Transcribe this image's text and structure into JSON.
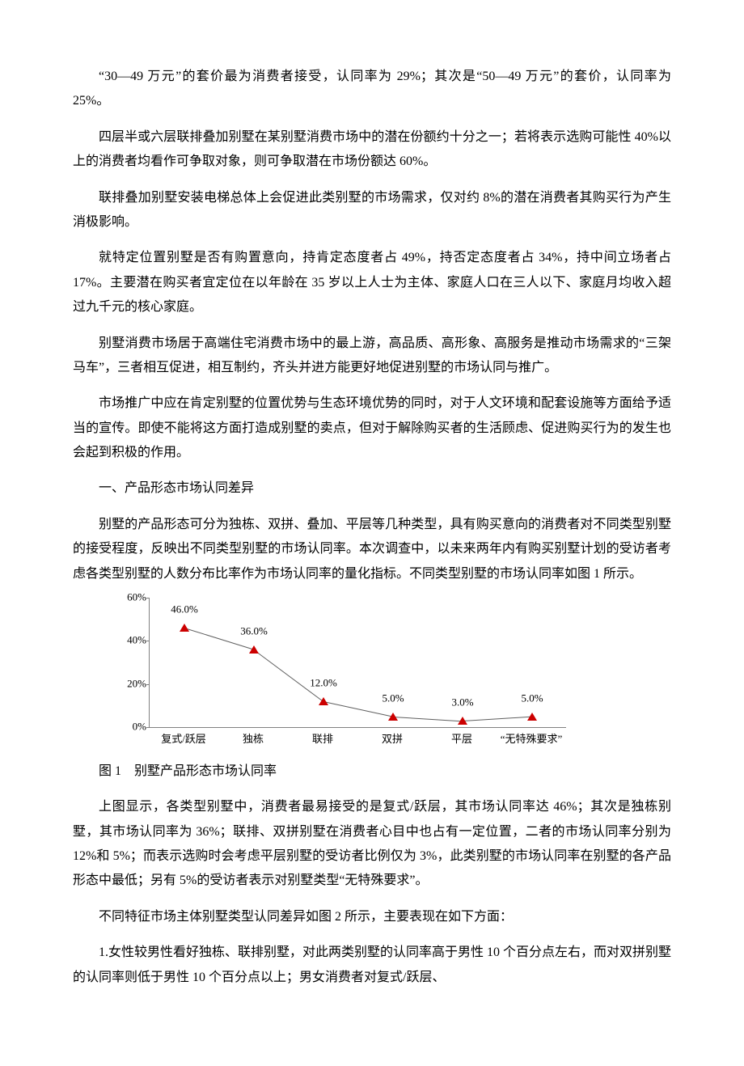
{
  "paragraphs": {
    "p1": "“30—49 万元”的套价最为消费者接受，认同率为 29%；其次是“50—49 万元”的套价，认同率为 25%。",
    "p2": "四层半或六层联排叠加别墅在某别墅消费市场中的潜在份额约十分之一；若将表示选购可能性 40%以上的消费者均看作可争取对象，则可争取潜在市场份额达 60%。",
    "p3": "联排叠加别墅安装电梯总体上会促进此类别墅的市场需求，仅对约 8%的潜在消费者其购买行为产生消极影响。",
    "p4": "就特定位置别墅是否有购置意向，持肯定态度者占 49%，持否定态度者占 34%，持中间立场者占 17%。主要潜在购买者宜定位在以年龄在 35 岁以上人士为主体、家庭人口在三人以下、家庭月均收入超过九千元的核心家庭。",
    "p5": "别墅消费市场居于高端住宅消费市场中的最上游，高品质、高形象、高服务是推动市场需求的“三架马车”，三者相互促进，相互制约，齐头并进方能更好地促进别墅的市场认同与推广。",
    "p6": "市场推广中应在肯定别墅的位置优势与生态环境优势的同时，对于人文环境和配套设施等方面给予适当的宣传。即使不能将这方面打造成别墅的卖点，但对于解除购买者的生活顾虑、促进购买行为的发生也会起到积极的作用。",
    "h1": "一、产品形态市场认同差异",
    "p7": "别墅的产品形态可分为独栋、双拼、叠加、平层等几种类型，具有购买意向的消费者对不同类型别墅的接受程度，反映出不同类型别墅的市场认同率。本次调查中，以未来两年内有购买别墅计划的受访者考虑各类型别墅的人数分布比率作为市场认同率的量化指标。不同类型别墅的市场认同率如图 1 所示。",
    "figcap": "图 1　别墅产品形态市场认同率",
    "p8": "上图显示，各类型别墅中，消费者最易接受的是复式/跃层，其市场认同率达 46%；其次是独栋别墅，其市场认同率为 36%；联排、双拼别墅在消费者心目中也占有一定位置，二者的市场认同率分别为 12%和 5%；而表示选购时会考虑平层别墅的受访者比例仅为 3%，此类别墅的市场认同率在别墅的各产品形态中最低；另有 5%的受访者表示对别墅类型“无特殊要求”。",
    "p9": "不同特征市场主体别墅类型认同差异如图 2 所示，主要表现在如下方面：",
    "p10": "1.女性较男性看好独栋、联排别墅，对此两类别墅的认同率高于男性 10 个百分点左右，而对双拼别墅的认同率则低于男性 10 个百分点以上；男女消费者对复式/跃层、"
  },
  "chart": {
    "type": "line-marker",
    "ylim": [
      0,
      60
    ],
    "ytick_step": 20,
    "ytick_labels": [
      "0%",
      "20%",
      "40%",
      "60%"
    ],
    "categories": [
      "复式/跃层",
      "独栋",
      "联排",
      "双拼",
      "平层",
      "“无特殊要求”"
    ],
    "values": [
      46.0,
      36.0,
      12.0,
      5.0,
      3.0,
      5.0
    ],
    "value_labels": [
      "46.0%",
      "36.0%",
      "12.0%",
      "5.0%",
      "3.0%",
      "5.0%"
    ],
    "marker_color": "#cc0000",
    "line_color": "#606060",
    "axis_color": "#808080",
    "label_fontsize": 13,
    "background_color": "#ffffff"
  }
}
